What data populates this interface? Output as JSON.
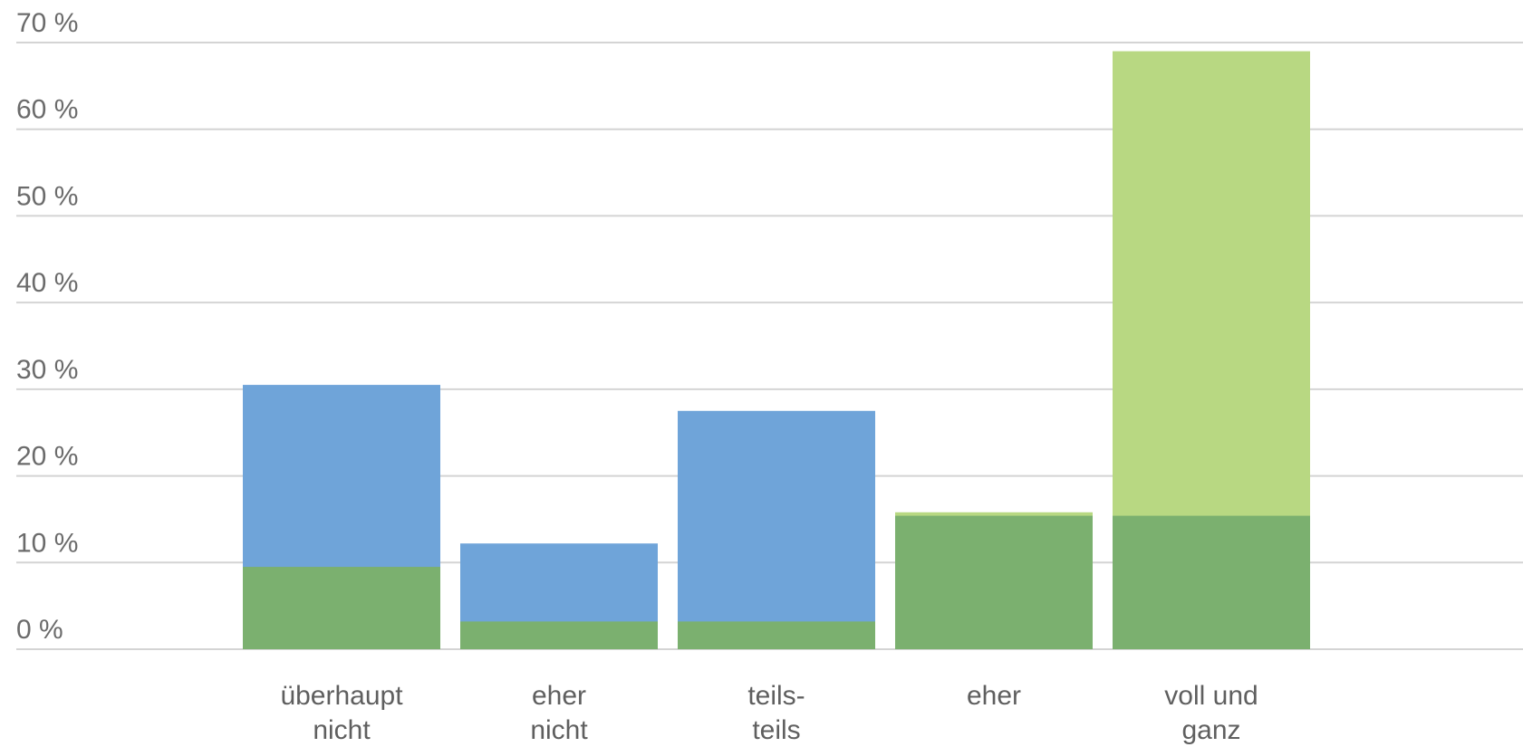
{
  "chart_data": {
    "type": "bar",
    "title": "",
    "xlabel": "",
    "ylabel": "",
    "categories": [
      [
        "überhaupt",
        "nicht"
      ],
      [
        "eher",
        "nicht"
      ],
      [
        "teils-",
        "teils"
      ],
      [
        "eher"
      ],
      [
        "voll und",
        "ganz"
      ]
    ],
    "series": [
      {
        "values": [
          30.5,
          12.2,
          27.5,
          0,
          0
        ],
        "color": "#6fa4d9"
      },
      {
        "values": [
          0,
          0,
          0,
          15.8,
          69.0
        ],
        "color": "#b8d882"
      },
      {
        "values": [
          9.5,
          3.2,
          3.2,
          15.4,
          15.4
        ],
        "color": "#7bb06f"
      }
    ],
    "ylim": [
      0,
      70
    ],
    "yticks": [
      0,
      10,
      20,
      30,
      40,
      50,
      60,
      70
    ],
    "ytick_suffix": " %",
    "grid": true,
    "overlap": true
  }
}
